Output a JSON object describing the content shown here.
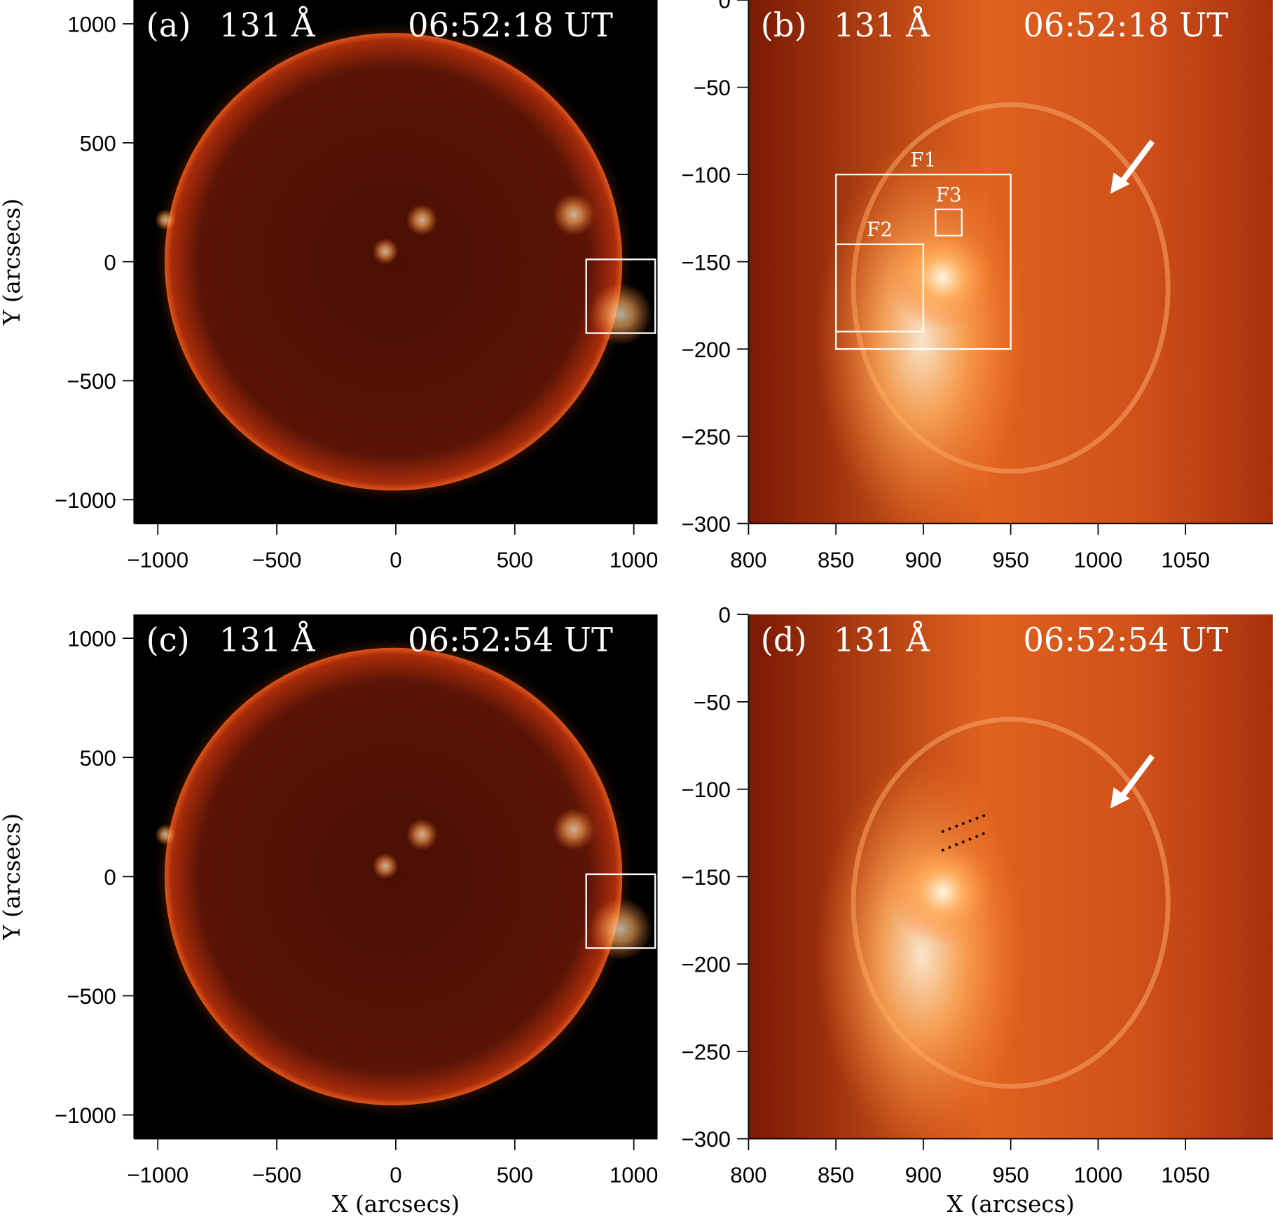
{
  "chart_data": [
    {
      "type": "image",
      "panel": "(a)",
      "wavelength": "131 Å",
      "time": "06:52:18 UT",
      "xlim": [
        -1100,
        1100
      ],
      "ylim": [
        -1100,
        1100
      ],
      "xticks": [
        {
          "value": -1000,
          "label": "−1000"
        },
        {
          "value": -500,
          "label": "−500"
        },
        0,
        500,
        1000
      ],
      "yticks": [
        {
          "value": -1000,
          "label": "−1000"
        },
        {
          "value": -500,
          "label": "−500"
        },
        0,
        500,
        1000
      ],
      "ylabel": "Y (arcsecs)",
      "boxes": [
        {
          "x": [
            800,
            1090
          ],
          "y": [
            -300,
            10
          ]
        }
      ]
    },
    {
      "type": "image",
      "panel": "(b)",
      "wavelength": "131 Å",
      "time": "06:52:18 UT",
      "xlim": [
        800,
        1100
      ],
      "ylim": [
        -300,
        0
      ],
      "xticks": [
        800,
        850,
        900,
        950,
        1000,
        1050
      ],
      "yticks": [
        {
          "value": -300,
          "label": "−300"
        },
        {
          "value": -250,
          "label": "−250"
        },
        {
          "value": -200,
          "label": "−200"
        },
        {
          "value": -150,
          "label": "−150"
        },
        {
          "value": -100,
          "label": "−100"
        },
        {
          "value": -50,
          "label": "−50"
        },
        0
      ],
      "boxes": [
        {
          "label": "F1",
          "x": [
            850,
            950
          ],
          "y": [
            -200,
            -100
          ]
        },
        {
          "label": "F2",
          "x": [
            850,
            900
          ],
          "y": [
            -190,
            -140
          ]
        },
        {
          "label": "F3",
          "x": [
            907,
            922
          ],
          "y": [
            -135,
            -120
          ]
        }
      ]
    },
    {
      "type": "image",
      "panel": "(c)",
      "wavelength": "131 Å",
      "time": "06:52:54 UT",
      "xlim": [
        -1100,
        1100
      ],
      "ylim": [
        -1100,
        1100
      ],
      "xticks": [
        {
          "value": -1000,
          "label": "−1000"
        },
        {
          "value": -500,
          "label": "−500"
        },
        0,
        500,
        1000
      ],
      "yticks": [
        {
          "value": -1000,
          "label": "−1000"
        },
        {
          "value": -500,
          "label": "−500"
        },
        0,
        500,
        1000
      ],
      "xlabel": "X (arcsecs)",
      "ylabel": "Y (arcsecs)",
      "boxes": [
        {
          "x": [
            800,
            1090
          ],
          "y": [
            -300,
            10
          ]
        }
      ]
    },
    {
      "type": "image",
      "panel": "(d)",
      "wavelength": "131 Å",
      "time": "06:52:54 UT",
      "xlim": [
        800,
        1100
      ],
      "ylim": [
        -300,
        0
      ],
      "xticks": [
        800,
        850,
        900,
        950,
        1000,
        1050
      ],
      "yticks": [
        {
          "value": -300,
          "label": "−300"
        },
        {
          "value": -250,
          "label": "−250"
        },
        {
          "value": -200,
          "label": "−200"
        },
        {
          "value": -150,
          "label": "−150"
        },
        {
          "value": -100,
          "label": "−100"
        },
        {
          "value": -50,
          "label": "−50"
        },
        0
      ],
      "xlabel": "X (arcsecs)"
    }
  ]
}
